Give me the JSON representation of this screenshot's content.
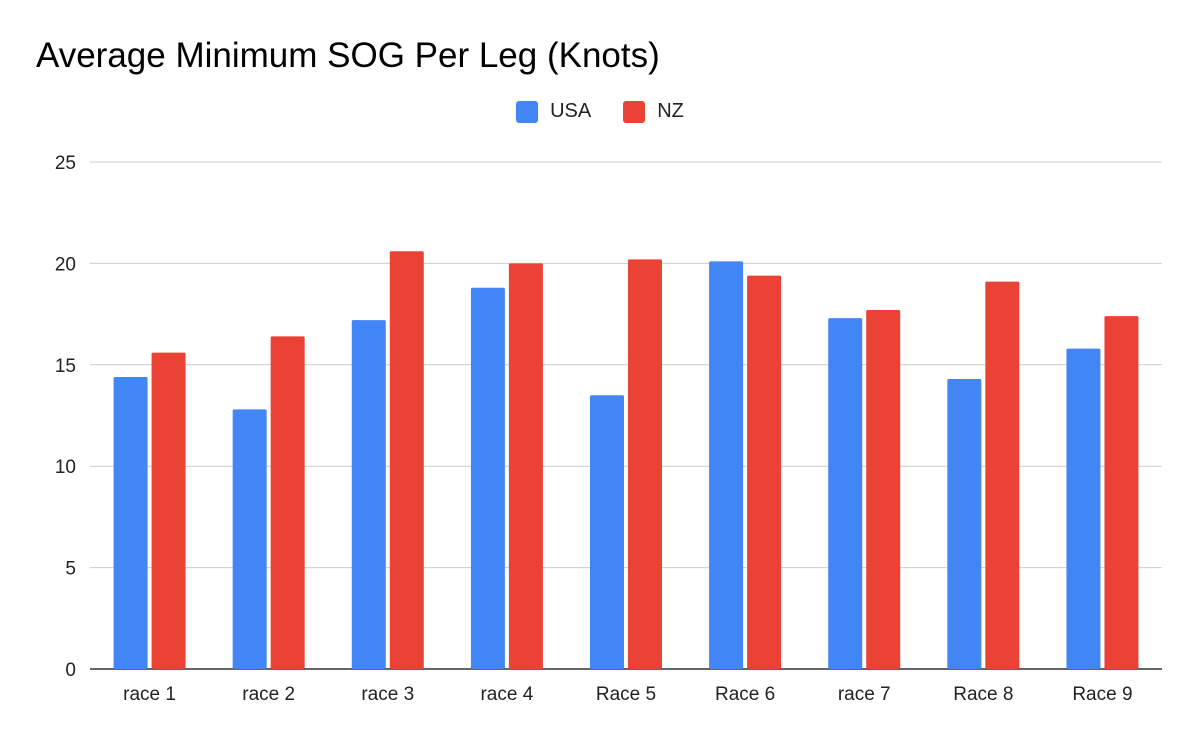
{
  "chart_data": {
    "type": "bar",
    "title": "Average Minimum SOG Per Leg (Knots)",
    "categories": [
      "race 1",
      "race 2",
      "race 3",
      "race 4",
      "Race 5",
      "Race 6",
      "race 7",
      "Race 8",
      "Race 9"
    ],
    "series": [
      {
        "name": "USA",
        "color": "#4285f4",
        "values": [
          14.4,
          12.8,
          17.2,
          18.8,
          13.5,
          20.1,
          17.3,
          14.3,
          15.8
        ]
      },
      {
        "name": "NZ",
        "color": "#ea4335",
        "values": [
          15.6,
          16.4,
          20.6,
          20.0,
          20.2,
          19.4,
          17.7,
          19.1,
          17.4
        ]
      }
    ],
    "yticks": [
      "0",
      "5",
      "10",
      "15",
      "20",
      "25"
    ],
    "ylim": [
      0,
      25
    ],
    "xlabel": "",
    "ylabel": "",
    "grid": true,
    "legend_position": "top-center"
  }
}
